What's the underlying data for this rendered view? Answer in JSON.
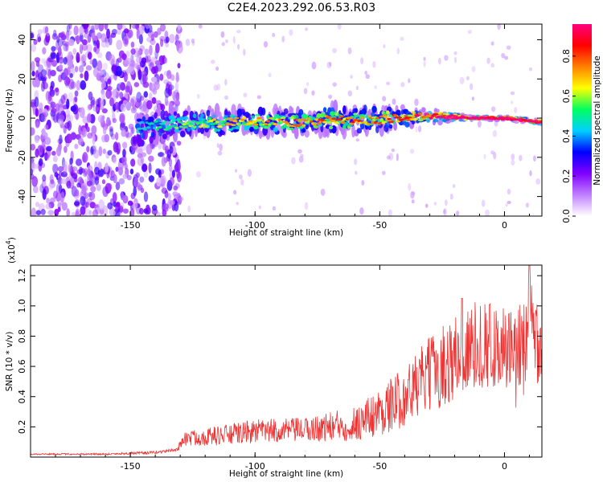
{
  "title": "C2E4.2023.292.06.53.R03",
  "chart_data": [
    {
      "type": "heatmap",
      "xlabel": "Height of straight line (km)",
      "ylabel": "Frequency (Hz)",
      "xlim": [
        -190,
        15
      ],
      "ylim": [
        -50,
        48
      ],
      "x_ticks": [
        -150,
        -100,
        -50,
        0
      ],
      "x_tick_labels": [
        "-150",
        "-100",
        "-50",
        "0"
      ],
      "y_ticks": [
        -40,
        -20,
        0,
        20,
        40
      ],
      "y_tick_labels": [
        "-40",
        "-20",
        "0",
        "20",
        "40"
      ],
      "colorbar": {
        "label": "Normalized spectral amplitude",
        "range": [
          0,
          0.96
        ],
        "ticks": [
          0,
          0.2,
          0.4,
          0.6,
          0.8
        ],
        "tick_labels": [
          "0.0",
          "0.2",
          "0.4",
          "0.6",
          "0.8"
        ],
        "colormap": [
          "#ffffff",
          "#c080ff",
          "#8000ff",
          "#0000ff",
          "#00d0ff",
          "#00ff60",
          "#ffff00",
          "#ff8000",
          "#ff0000",
          "#ff0080"
        ]
      },
      "band": {
        "x": [
          -145,
          -130,
          -110,
          -90,
          -70,
          -50,
          -35,
          -25,
          -15,
          0,
          14
        ],
        "center_freq": [
          -5,
          -3,
          -2,
          -2,
          -1,
          -1,
          1,
          1,
          0,
          0,
          -2
        ],
        "half_width": [
          9,
          7,
          7,
          7,
          7,
          7,
          4,
          3,
          1.5,
          1.5,
          1.5
        ],
        "peak_amplitude": [
          0.2,
          0.3,
          0.4,
          0.45,
          0.5,
          0.5,
          0.6,
          0.75,
          0.9,
          0.85,
          0.8
        ]
      },
      "noise_region": {
        "x_range": [
          -190,
          -130
        ],
        "amplitude": 0.15
      },
      "grid": false
    },
    {
      "type": "line",
      "xlabel": "Height of straight line (km)",
      "ylabel": "SNR (10 * v/v)",
      "y_multiplier": "(x10",
      "y_multiplier_exp": "4",
      "y_multiplier_close": ")",
      "xlim": [
        -190,
        15
      ],
      "ylim": [
        0,
        1.27
      ],
      "x_ticks": [
        -150,
        -100,
        -50,
        0
      ],
      "x_tick_labels": [
        "-150",
        "-100",
        "-50",
        "0"
      ],
      "y_ticks": [
        0.2,
        0.4,
        0.6,
        0.8,
        1.0,
        1.2
      ],
      "y_tick_labels": [
        "0.2",
        "0.4",
        "0.6",
        "0.8",
        "1.0",
        "1.2"
      ],
      "series": [
        {
          "color": "#ee3333",
          "envelope_x": [
            -190,
            -160,
            -140,
            -131,
            -129,
            -110,
            -100,
            -80,
            -60,
            -50,
            -40,
            -30,
            -20,
            -10,
            0,
            5,
            10,
            15
          ],
          "envelope_y": [
            0.02,
            0.02,
            0.03,
            0.05,
            0.12,
            0.15,
            0.17,
            0.18,
            0.22,
            0.3,
            0.4,
            0.55,
            0.65,
            0.75,
            0.72,
            0.6,
            0.9,
            0.75
          ],
          "spread": [
            0.005,
            0.006,
            0.01,
            0.01,
            0.05,
            0.07,
            0.08,
            0.08,
            0.12,
            0.16,
            0.2,
            0.25,
            0.3,
            0.3,
            0.28,
            0.35,
            0.35,
            0.3
          ],
          "spikes": [
            {
              "x": -17,
              "y": 1.05
            },
            {
              "x": -6,
              "y": 1.01
            },
            {
              "x": 10,
              "y": 1.27
            },
            {
              "x": -3,
              "y": 0.85
            }
          ]
        }
      ],
      "grid": false
    }
  ]
}
